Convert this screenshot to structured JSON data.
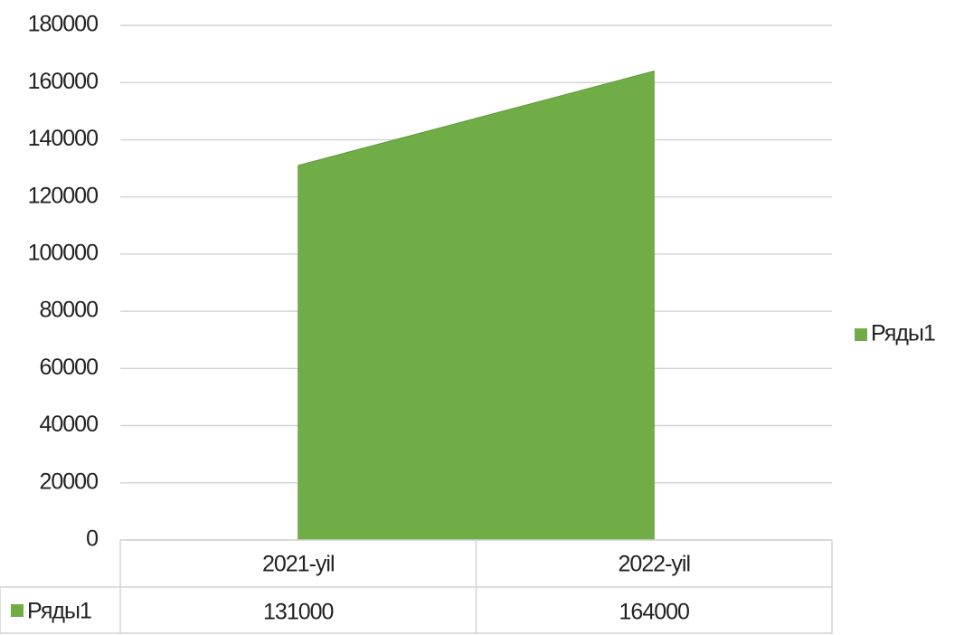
{
  "chart_data": {
    "type": "area",
    "categories": [
      "2021-yil",
      "2022-yil"
    ],
    "series": [
      {
        "name": "Ряды1",
        "color": "#70ad47",
        "values": [
          131000,
          164000
        ]
      }
    ],
    "ylim": [
      0,
      180000
    ],
    "yticks": [
      0,
      20000,
      40000,
      60000,
      80000,
      100000,
      120000,
      140000,
      160000,
      180000
    ],
    "grid": true,
    "legend": "right",
    "data_table": true
  }
}
